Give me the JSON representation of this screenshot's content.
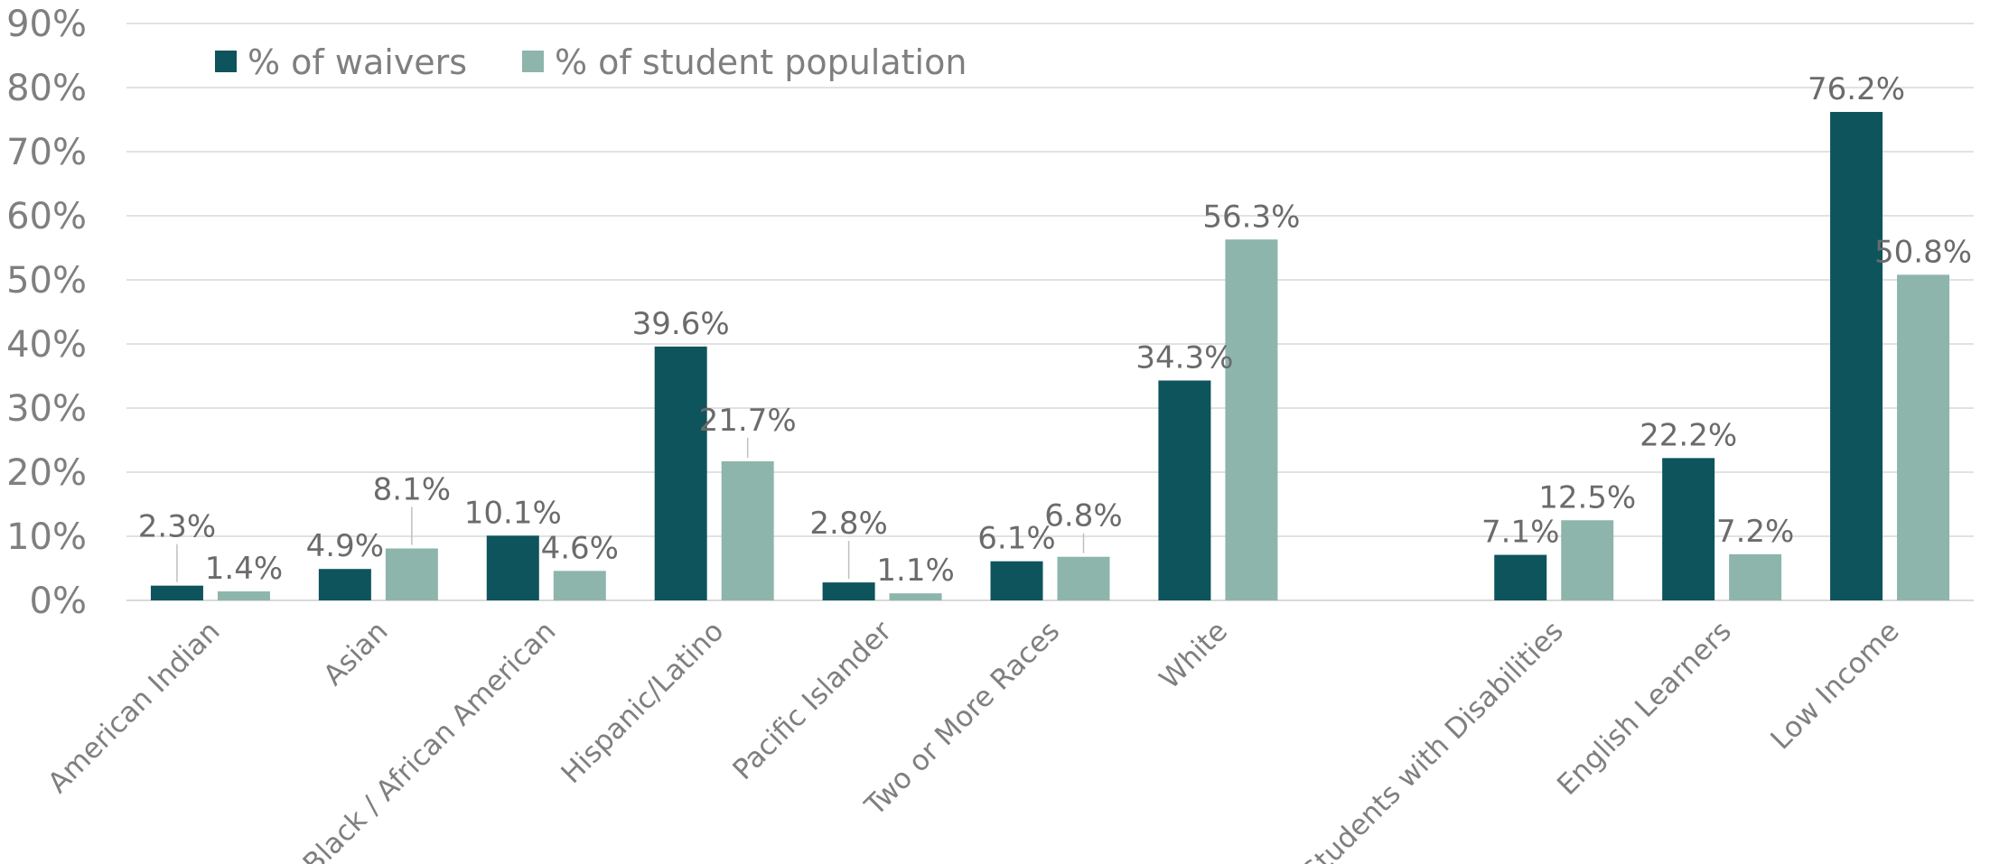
{
  "chart_data": {
    "type": "bar",
    "title": "",
    "xlabel": "",
    "ylabel": "",
    "ylim": [
      0,
      90
    ],
    "y_ticks": [
      "0%",
      "10%",
      "20%",
      "30%",
      "40%",
      "50%",
      "60%",
      "70%",
      "80%",
      "90%"
    ],
    "grid": true,
    "legend_position": "top-left",
    "categories": [
      "American Indian",
      "Asian",
      "Black / African American",
      "Hispanic/Latino",
      "Pacific Islander",
      "Two or More Races",
      "White",
      "",
      "Students with Disabilities",
      "English Learners",
      "Low Income"
    ],
    "series": [
      {
        "name": "% of waivers",
        "color": "#0e545c",
        "values": [
          2.3,
          4.9,
          10.1,
          39.6,
          2.8,
          6.1,
          34.3,
          null,
          7.1,
          22.2,
          76.2
        ],
        "labels": [
          "2.3%",
          "4.9%",
          "10.1%",
          "39.6%",
          "2.8%",
          "6.1%",
          "34.3%",
          "",
          "7.1%",
          "22.2%",
          "76.2%"
        ]
      },
      {
        "name": "% of student population",
        "color": "#8db5ab",
        "values": [
          1.4,
          8.1,
          4.6,
          21.7,
          1.1,
          6.8,
          56.3,
          null,
          12.5,
          7.2,
          50.8
        ],
        "labels": [
          "1.4%",
          "8.1%",
          "4.6%",
          "21.7%",
          "1.1%",
          "6.8%",
          "56.3%",
          "",
          "12.5%",
          "7.2%",
          "50.8%"
        ]
      }
    ]
  }
}
